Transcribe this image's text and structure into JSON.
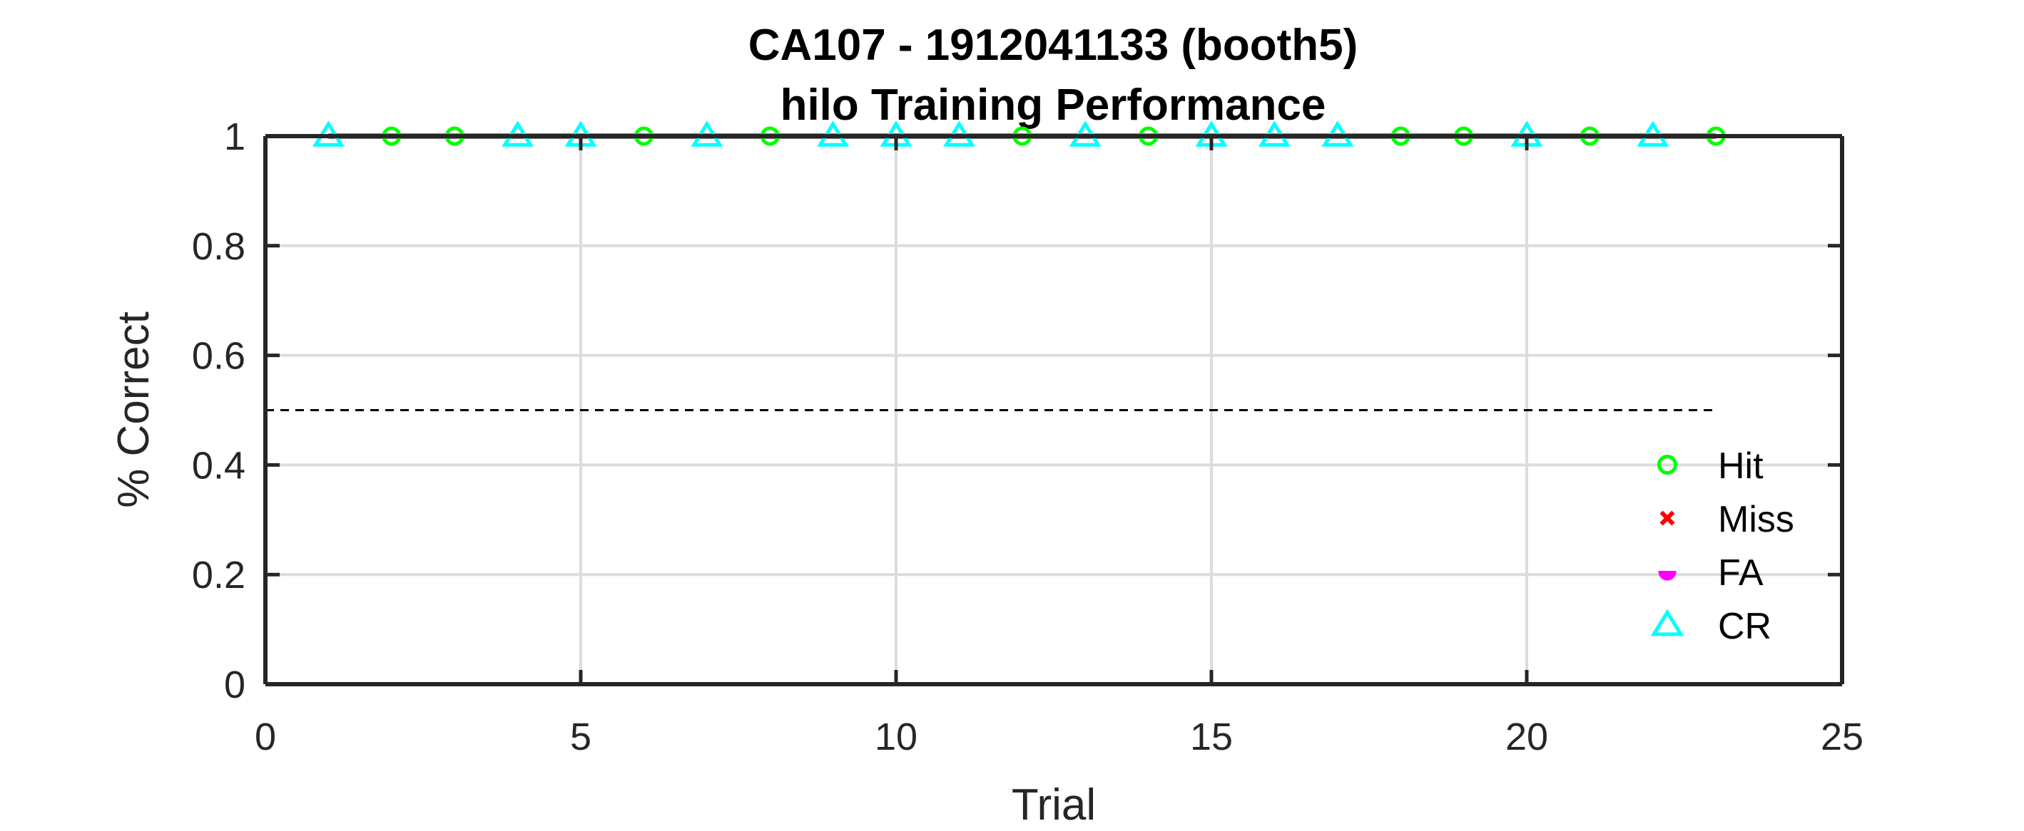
{
  "chart_data": {
    "type": "line",
    "title": "CA107 - 1912041133 (booth5)",
    "subtitle": "hilo Training Performance",
    "xlabel": "Trial",
    "ylabel": "% Correct",
    "xlim": [
      0,
      25
    ],
    "ylim": [
      0,
      1
    ],
    "xticks": [
      "0",
      "5",
      "10",
      "15",
      "20",
      "25"
    ],
    "yticks": [
      "0",
      "0.2",
      "0.4",
      "0.6",
      "0.8",
      "1"
    ],
    "grid": true,
    "legend_position": "bottom-right",
    "performance": {
      "x": [
        1,
        2,
        3,
        4,
        5,
        6,
        7,
        8,
        9,
        10,
        11,
        12,
        13,
        14,
        15,
        16,
        17,
        18,
        19,
        20,
        21,
        22,
        23
      ],
      "y": [
        1,
        1,
        1,
        1,
        1,
        1,
        1,
        1,
        1,
        1,
        1,
        1,
        1,
        1,
        1,
        1,
        1,
        1,
        1,
        1,
        1,
        1,
        1
      ],
      "color": "#000000"
    },
    "reference_line": {
      "y": 0.5,
      "x_range": [
        0,
        23
      ],
      "style": "dashed"
    },
    "series": [
      {
        "name": "Hit",
        "marker": "circle",
        "color": "#00ff00",
        "x": [
          2,
          3,
          6,
          8,
          12,
          14,
          18,
          19,
          21,
          23
        ],
        "y": [
          1,
          1,
          1,
          1,
          1,
          1,
          1,
          1,
          1,
          1
        ]
      },
      {
        "name": "Miss",
        "marker": "x",
        "color": "#ff0000",
        "x": [],
        "y": []
      },
      {
        "name": "FA",
        "marker": "half-circle",
        "color": "#ff00ff",
        "x": [],
        "y": []
      },
      {
        "name": "CR",
        "marker": "triangle",
        "color": "#00ffff",
        "x": [
          1,
          4,
          5,
          7,
          9,
          10,
          11,
          13,
          15,
          16,
          17,
          20,
          22
        ],
        "y": [
          1,
          1,
          1,
          1,
          1,
          1,
          1,
          1,
          1,
          1,
          1,
          1,
          1
        ]
      }
    ]
  }
}
